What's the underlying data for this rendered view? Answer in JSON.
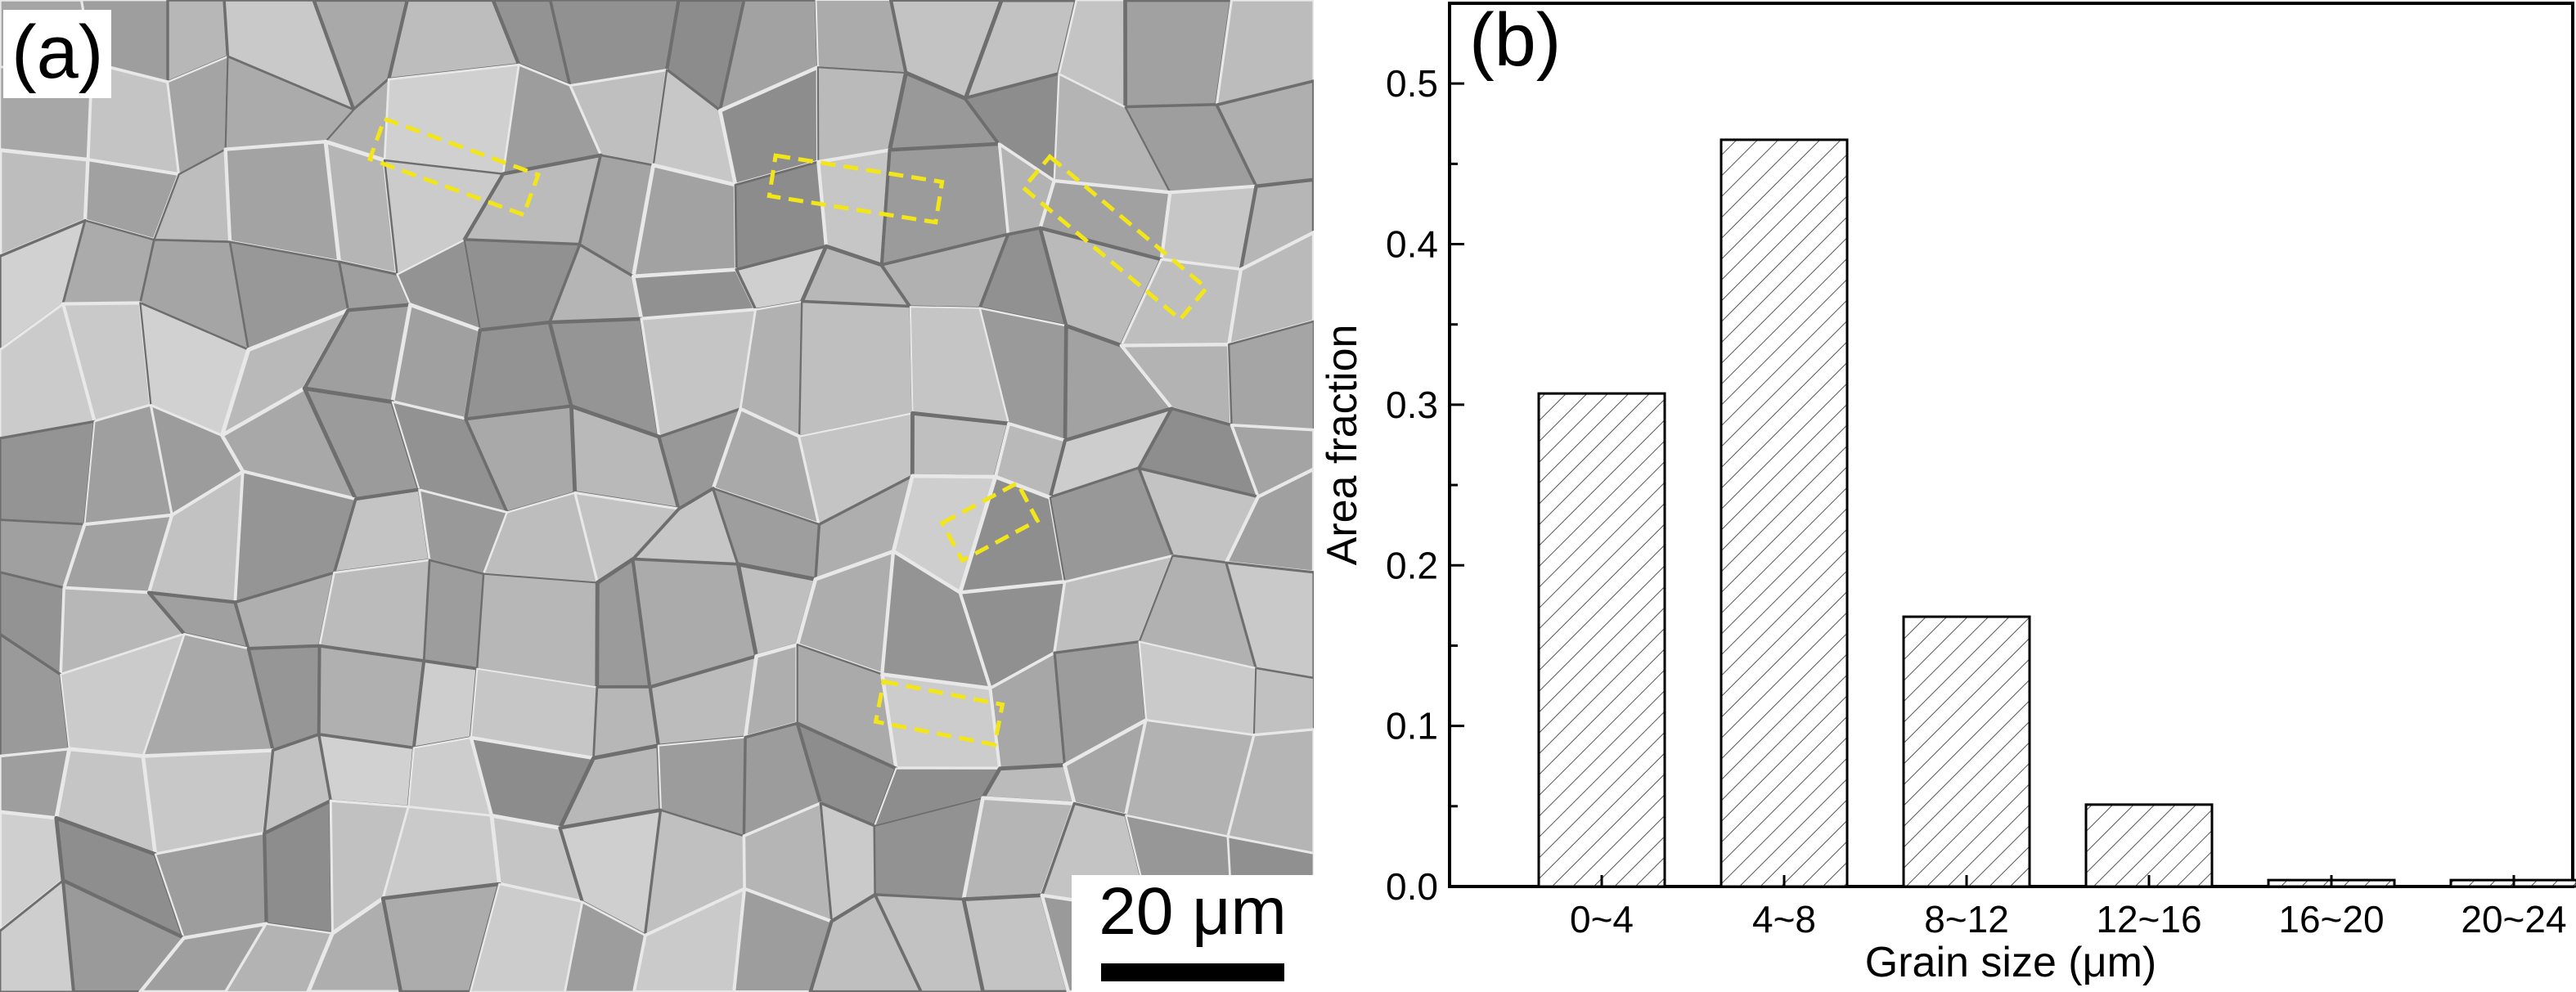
{
  "panel_a": {
    "label": "(a)",
    "scale_bar": "20 μm",
    "highlight_color": "#f2e61a"
  },
  "panel_b": {
    "label": "(b)"
  },
  "chart_data": {
    "type": "bar",
    "categories": [
      "0~4",
      "4~8",
      "8~12",
      "12~16",
      "16~20",
      "20~24"
    ],
    "values": [
      0.307,
      0.465,
      0.168,
      0.051,
      0.004,
      0.004
    ],
    "xlabel": "Grain size (μm)",
    "ylabel": "Area fraction",
    "ylim": [
      0,
      0.55
    ],
    "yticks": [
      0.0,
      0.1,
      0.2,
      0.3,
      0.4,
      0.5
    ],
    "ytick_labels": [
      "0.0",
      "0.1",
      "0.2",
      "0.3",
      "0.4",
      "0.5"
    ],
    "bar_fill": "hatched",
    "grid": false
  }
}
